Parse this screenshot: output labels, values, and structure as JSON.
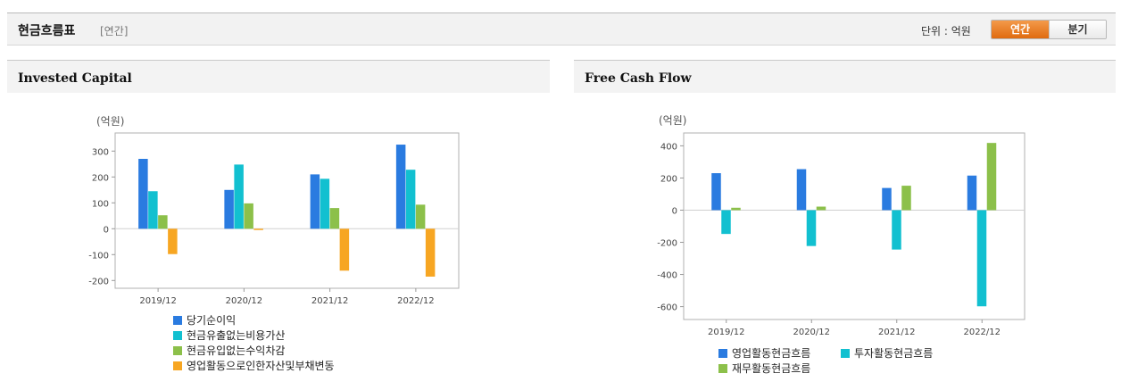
{
  "header": {
    "title": "현금흐름표",
    "period_tag": "[연간]",
    "unit_label": "단위 : 억원",
    "toggle": [
      {
        "label": "연간",
        "active": true
      },
      {
        "label": "분기",
        "active": false
      }
    ]
  },
  "panels": [
    {
      "title": "Invested Capital"
    },
    {
      "title": "Free Cash Flow"
    }
  ],
  "colors": {
    "blue": "#2a7be0",
    "cyan": "#12c0d0",
    "green": "#8cc04a",
    "orange": "#f7a622"
  },
  "chart_data": [
    {
      "type": "bar",
      "unit_label": "(억원)",
      "categories": [
        "2019/12",
        "2020/12",
        "2021/12",
        "2022/12"
      ],
      "ylim": [
        -230,
        370
      ],
      "yticks": [
        -200,
        -100,
        0,
        100,
        200,
        300
      ],
      "grid": false,
      "legend": "bottom",
      "series": [
        {
          "name": "당기순이익",
          "color": "#2a7be0",
          "values": [
            270,
            150,
            210,
            325
          ]
        },
        {
          "name": "현금유출없는비용가산",
          "color": "#12c0d0",
          "values": [
            145,
            248,
            193,
            228
          ]
        },
        {
          "name": "현금유입없는수익차감",
          "color": "#8cc04a",
          "values": [
            52,
            98,
            80,
            93
          ]
        },
        {
          "name": "영업활동으로인한자산및부채변동",
          "color": "#f7a622",
          "values": [
            -98,
            -5,
            -162,
            -185
          ]
        }
      ]
    },
    {
      "type": "bar",
      "unit_label": "(억원)",
      "categories": [
        "2019/12",
        "2020/12",
        "2021/12",
        "2022/12"
      ],
      "ylim": [
        -680,
        480
      ],
      "yticks": [
        -600,
        -400,
        -200,
        0,
        200,
        400
      ],
      "grid": false,
      "legend": "bottom",
      "series": [
        {
          "name": "영업활동현금흐름",
          "color": "#2a7be0",
          "values": [
            230,
            255,
            138,
            215
          ]
        },
        {
          "name": "투자활동현금흐름",
          "color": "#12c0d0",
          "values": [
            -148,
            -223,
            -245,
            -598
          ]
        },
        {
          "name": "재무활동현금흐름",
          "color": "#8cc04a",
          "values": [
            15,
            22,
            152,
            418
          ]
        }
      ]
    }
  ]
}
